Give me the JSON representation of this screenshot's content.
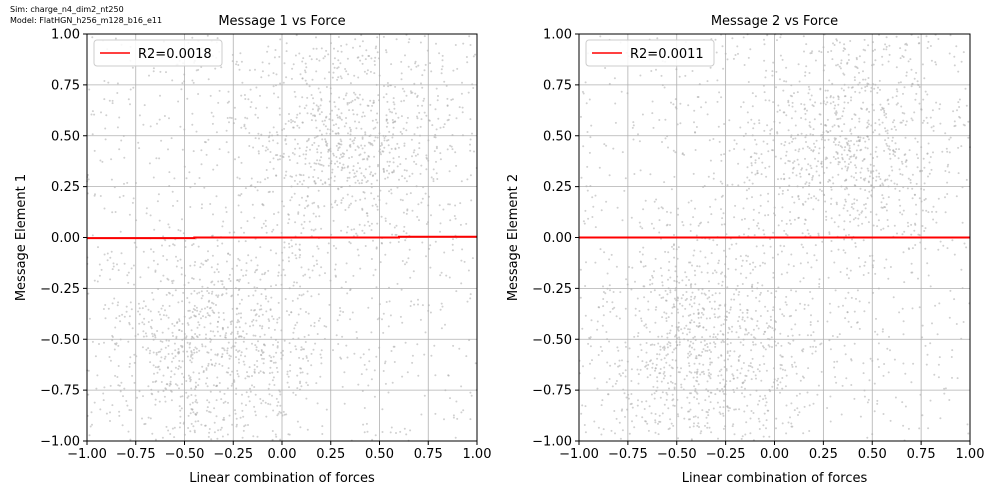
{
  "header": {
    "sim": "Sim: charge_n4_dim2_nt250",
    "model": "Model: FlatHGN_h256_m128_b16_e11"
  },
  "chart_data": [
    {
      "type": "scatter",
      "title": "Message 1 vs Force",
      "xlabel": "Linear combination of forces",
      "ylabel": "Message Element 1",
      "xlim": [
        -1.0,
        1.0
      ],
      "ylim": [
        -1.0,
        1.0
      ],
      "xticks": [
        "−1.00",
        "−0.75",
        "−0.50",
        "−0.25",
        "0.00",
        "0.25",
        "0.50",
        "0.75",
        "1.00"
      ],
      "yticks": [
        "−1.00",
        "−0.75",
        "−0.50",
        "−0.25",
        "0.00",
        "0.25",
        "0.50",
        "0.75",
        "1.00"
      ],
      "grid": true,
      "legend": {
        "label": "R2=0.0018",
        "color": "#ff0000",
        "placement": "top-left"
      },
      "fit_line": {
        "x": [
          -1.0,
          -0.45,
          -0.45,
          0.6,
          0.6,
          1.0
        ],
        "y": [
          -0.003,
          -0.003,
          0.0,
          0.0,
          0.004,
          0.004
        ]
      },
      "scatter_summary": {
        "points": 2500,
        "color": "#aaaaaa",
        "clusters": [
          {
            "x": -0.35,
            "y": -0.55,
            "spread": 0.28
          },
          {
            "x": 0.35,
            "y": 0.45,
            "spread": 0.28
          }
        ]
      }
    },
    {
      "type": "scatter",
      "title": "Message 2 vs Force",
      "xlabel": "Linear combination of forces",
      "ylabel": "Message Element 2",
      "xlim": [
        -1.0,
        1.0
      ],
      "ylim": [
        -1.0,
        1.0
      ],
      "xticks": [
        "−1.00",
        "−0.75",
        "−0.50",
        "−0.25",
        "0.00",
        "0.25",
        "0.50",
        "0.75",
        "1.00"
      ],
      "yticks": [
        "−1.00",
        "−0.75",
        "−0.50",
        "−0.25",
        "0.00",
        "0.25",
        "0.50",
        "0.75",
        "1.00"
      ],
      "grid": true,
      "legend": {
        "label": "R2=0.0011",
        "color": "#ff0000",
        "placement": "top-left"
      },
      "fit_line": {
        "x": [
          -1.0,
          1.0
        ],
        "y": [
          0.0,
          0.0
        ]
      },
      "scatter_summary": {
        "points": 2500,
        "color": "#aaaaaa",
        "clusters": [
          {
            "x": -0.35,
            "y": -0.55,
            "spread": 0.28
          },
          {
            "x": 0.35,
            "y": 0.45,
            "spread": 0.28
          }
        ]
      }
    }
  ]
}
